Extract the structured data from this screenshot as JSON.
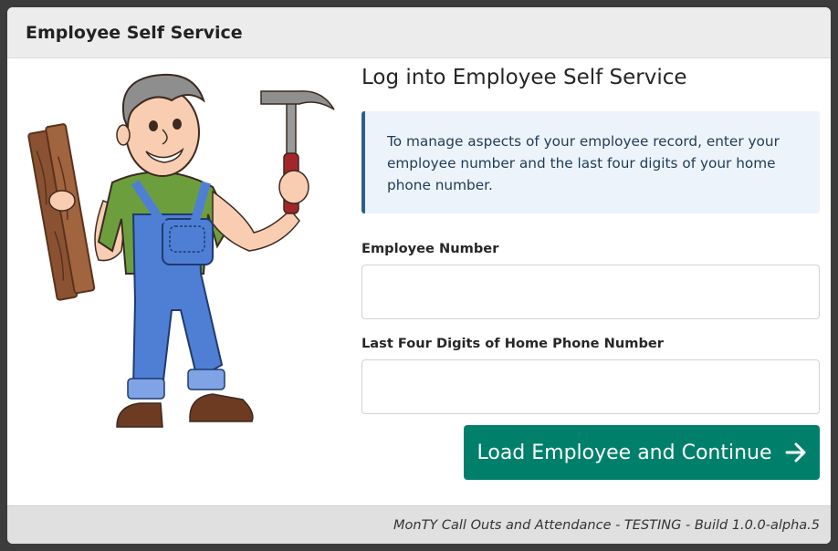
{
  "header": {
    "title": "Employee Self Service"
  },
  "main": {
    "title": "Log into Employee Self Service",
    "info": "To manage aspects of your employee record, enter your employee number and the last four digits of your home phone number.",
    "fields": {
      "employee_number": {
        "label": "Employee Number",
        "value": ""
      },
      "phone_digits": {
        "label": "Last Four Digits of Home Phone Number",
        "value": ""
      }
    },
    "submit_label": "Load Employee and Continue",
    "submit_icon": "arrow-right-icon",
    "illustration": "handyman-with-hammer-and-planks"
  },
  "footer": {
    "text": "MonTY Call Outs and Attendance - TESTING - Build 1.0.0-alpha.5"
  },
  "colors": {
    "primary": "#00806b",
    "info_border": "#2d5f8c",
    "info_bg": "#edf3fa",
    "header_bg": "#ececec",
    "footer_bg": "#e0e0e0"
  }
}
